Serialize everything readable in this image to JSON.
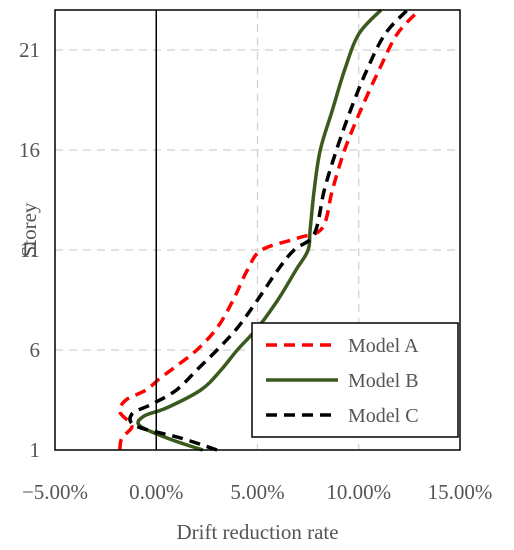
{
  "chart_data": {
    "type": "line",
    "title": "",
    "xlabel": "Drift reduction rate",
    "ylabel": "Storey",
    "xlim": [
      -5,
      15
    ],
    "ylim": [
      1,
      23
    ],
    "x_unit": "%",
    "x_ticks": [
      -5,
      0,
      5,
      10,
      15
    ],
    "x_tick_labels": [
      "−5.00%",
      "0.00%",
      "5.00%",
      "10.00%",
      "15.00%"
    ],
    "y_ticks": [
      1,
      6,
      11,
      16,
      21
    ],
    "y_tick_labels": [
      "1",
      "6",
      "11",
      "16",
      "21"
    ],
    "grid": true,
    "legend_position": "bottom-right",
    "series": [
      {
        "name": "Model A",
        "color": "#ff0000",
        "dash": "dashed",
        "points": [
          {
            "x": -1.8,
            "y": 1.0
          },
          {
            "x": -1.7,
            "y": 1.6
          },
          {
            "x": -1.2,
            "y": 2.2
          },
          {
            "x": -1.8,
            "y": 2.9
          },
          {
            "x": -1.5,
            "y": 3.5
          },
          {
            "x": -0.5,
            "y": 4.0
          },
          {
            "x": 0.2,
            "y": 4.6
          },
          {
            "x": 1.0,
            "y": 5.2
          },
          {
            "x": 2.0,
            "y": 6.0
          },
          {
            "x": 3.0,
            "y": 7.1
          },
          {
            "x": 3.8,
            "y": 8.5
          },
          {
            "x": 4.5,
            "y": 10.0
          },
          {
            "x": 5.2,
            "y": 11.0
          },
          {
            "x": 7.0,
            "y": 11.6
          },
          {
            "x": 8.2,
            "y": 12.1
          },
          {
            "x": 8.7,
            "y": 14.0
          },
          {
            "x": 9.3,
            "y": 16.0
          },
          {
            "x": 10.1,
            "y": 18.0
          },
          {
            "x": 11.0,
            "y": 20.0
          },
          {
            "x": 11.9,
            "y": 21.8
          },
          {
            "x": 13.0,
            "y": 23.0
          }
        ]
      },
      {
        "name": "Model B",
        "color": "#3a5a1e",
        "dash": "solid",
        "points": [
          {
            "x": 2.3,
            "y": 1.0
          },
          {
            "x": 0.8,
            "y": 1.5
          },
          {
            "x": -0.8,
            "y": 2.2
          },
          {
            "x": -0.6,
            "y": 2.7
          },
          {
            "x": 0.5,
            "y": 3.1
          },
          {
            "x": 2.2,
            "y": 4.0
          },
          {
            "x": 3.2,
            "y": 5.0
          },
          {
            "x": 4.0,
            "y": 6.0
          },
          {
            "x": 5.0,
            "y": 7.1
          },
          {
            "x": 6.0,
            "y": 8.5
          },
          {
            "x": 6.9,
            "y": 10.0
          },
          {
            "x": 7.5,
            "y": 11.0
          },
          {
            "x": 7.6,
            "y": 12.0
          },
          {
            "x": 7.8,
            "y": 14.0
          },
          {
            "x": 8.1,
            "y": 16.0
          },
          {
            "x": 8.7,
            "y": 18.0
          },
          {
            "x": 9.3,
            "y": 20.0
          },
          {
            "x": 10.0,
            "y": 21.8
          },
          {
            "x": 11.1,
            "y": 23.0
          }
        ]
      },
      {
        "name": "Model C",
        "color": "#000000",
        "dash": "dashed",
        "points": [
          {
            "x": 3.0,
            "y": 1.0
          },
          {
            "x": 1.2,
            "y": 1.6
          },
          {
            "x": -1.0,
            "y": 2.2
          },
          {
            "x": -1.2,
            "y": 2.8
          },
          {
            "x": -0.2,
            "y": 3.3
          },
          {
            "x": 1.0,
            "y": 4.0
          },
          {
            "x": 2.0,
            "y": 5.0
          },
          {
            "x": 3.0,
            "y": 6.0
          },
          {
            "x": 4.0,
            "y": 7.1
          },
          {
            "x": 5.0,
            "y": 8.5
          },
          {
            "x": 6.0,
            "y": 10.0
          },
          {
            "x": 6.8,
            "y": 11.0
          },
          {
            "x": 7.8,
            "y": 11.8
          },
          {
            "x": 8.3,
            "y": 14.0
          },
          {
            "x": 8.9,
            "y": 16.0
          },
          {
            "x": 9.6,
            "y": 18.0
          },
          {
            "x": 10.4,
            "y": 20.0
          },
          {
            "x": 11.3,
            "y": 21.8
          },
          {
            "x": 12.4,
            "y": 23.0
          }
        ]
      }
    ]
  }
}
